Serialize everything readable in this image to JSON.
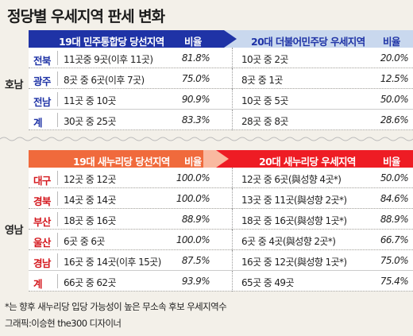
{
  "title": "정당별 우세지역 판세 변화",
  "honam": {
    "label": "호남",
    "header_left": "19대 민주통합당 당선지역",
    "header_left_ratio": "비율",
    "header_right": "20대 더불어민주당 우세지역",
    "header_right_ratio": "비율",
    "rows": [
      {
        "name": "전북",
        "left": "11곳중 9곳(이후 11곳)",
        "left_ratio": "81.8%",
        "right": "10곳 중 2곳",
        "right_ratio": "20.0%"
      },
      {
        "name": "광주",
        "left": "8곳 중 6곳(이후 7곳)",
        "left_ratio": "75.0%",
        "right": "8곳 중 1곳",
        "right_ratio": "12.5%"
      },
      {
        "name": "전남",
        "left": "11곳 중 10곳",
        "left_ratio": "90.9%",
        "right": "10곳 중 5곳",
        "right_ratio": "50.0%"
      },
      {
        "name": "계",
        "left": "30곳 중 25곳",
        "left_ratio": "83.3%",
        "right": "28곳 중 8곳",
        "right_ratio": "28.6%"
      }
    ]
  },
  "yeongnam": {
    "label": "영남",
    "header_left": "19대 새누리당 당선지역",
    "header_left_ratio": "비율",
    "header_right": "20대 새누리당 우세지역",
    "header_right_ratio": "비율",
    "rows": [
      {
        "name": "대구",
        "left": "12곳 중 12곳",
        "left_ratio": "100.0%",
        "right": "12곳 중 6곳(與성향 4곳*)",
        "right_ratio": "50.0%"
      },
      {
        "name": "경북",
        "left": "14곳 중 14곳",
        "left_ratio": "100.0%",
        "right": "13곳 중 11곳(與성향 2곳*)",
        "right_ratio": "84.6%"
      },
      {
        "name": "부산",
        "left": "18곳 중 16곳",
        "left_ratio": "88.9%",
        "right": "18곳 중 16곳(與성향 1곳*)",
        "right_ratio": "88.9%"
      },
      {
        "name": "울산",
        "left": "6곳 중 6곳",
        "left_ratio": "100.0%",
        "right": "6곳 중 4곳(與성향 2곳*)",
        "right_ratio": "66.7%"
      },
      {
        "name": "경남",
        "left": "16곳 중 14곳(이후 15곳)",
        "left_ratio": "87.5%",
        "right": "16곳 중 12곳(與성향 1곳*)",
        "right_ratio": "75.0%"
      },
      {
        "name": "계",
        "left": "66곳 중 62곳",
        "left_ratio": "93.9%",
        "right": "65곳 중 49곳",
        "right_ratio": "75.4%"
      }
    ]
  },
  "footnote": "*는 향후 새누리당 입당 가능성이 높은 무소속 후보 우세지역수",
  "credit": "그래픽:이승현 the300 디자이너",
  "colors": {
    "honam_header": "#1f33a6",
    "honam_header_right": "#c9d8ee",
    "honam_row_name": "#1f33a6",
    "yeongnam_header": "#f06a3c",
    "yeongnam_header_right": "#ee1c24",
    "yeongnam_row_name": "#d4161c",
    "bg": "#f3f0e9",
    "row_bg": "#ffffff"
  },
  "chart_data": {
    "type": "table",
    "title": "정당별 우세지역 판세 변화",
    "tables": [
      {
        "group": "호남",
        "columns": [
          "",
          "19대 민주통합당 당선지역",
          "비율",
          "20대 더불어민주당 우세지역",
          "비율"
        ],
        "rows": [
          [
            "전북",
            "11곳중 9곳(이후 11곳)",
            81.8,
            "10곳 중 2곳",
            20.0
          ],
          [
            "광주",
            "8곳 중 6곳(이후 7곳)",
            75.0,
            "8곳 중 1곳",
            12.5
          ],
          [
            "전남",
            "11곳 중 10곳",
            90.9,
            "10곳 중 5곳",
            50.0
          ],
          [
            "계",
            "30곳 중 25곳",
            83.3,
            "28곳 중 8곳",
            28.6
          ]
        ]
      },
      {
        "group": "영남",
        "columns": [
          "",
          "19대 새누리당 당선지역",
          "비율",
          "20대 새누리당 우세지역",
          "비율"
        ],
        "rows": [
          [
            "대구",
            "12곳 중 12곳",
            100.0,
            "12곳 중 6곳(與성향 4곳*)",
            50.0
          ],
          [
            "경북",
            "14곳 중 14곳",
            100.0,
            "13곳 중 11곳(與성향 2곳*)",
            84.6
          ],
          [
            "부산",
            "18곳 중 16곳",
            88.9,
            "18곳 중 16곳(與성향 1곳*)",
            88.9
          ],
          [
            "울산",
            "6곳 중 6곳",
            100.0,
            "6곳 중 4곳(與성향 2곳*)",
            66.7
          ],
          [
            "경남",
            "16곳 중 14곳(이후 15곳)",
            87.5,
            "16곳 중 12곳(與성향 1곳*)",
            75.0
          ],
          [
            "계",
            "66곳 중 62곳",
            93.9,
            "65곳 중 49곳",
            75.4
          ]
        ]
      }
    ]
  }
}
